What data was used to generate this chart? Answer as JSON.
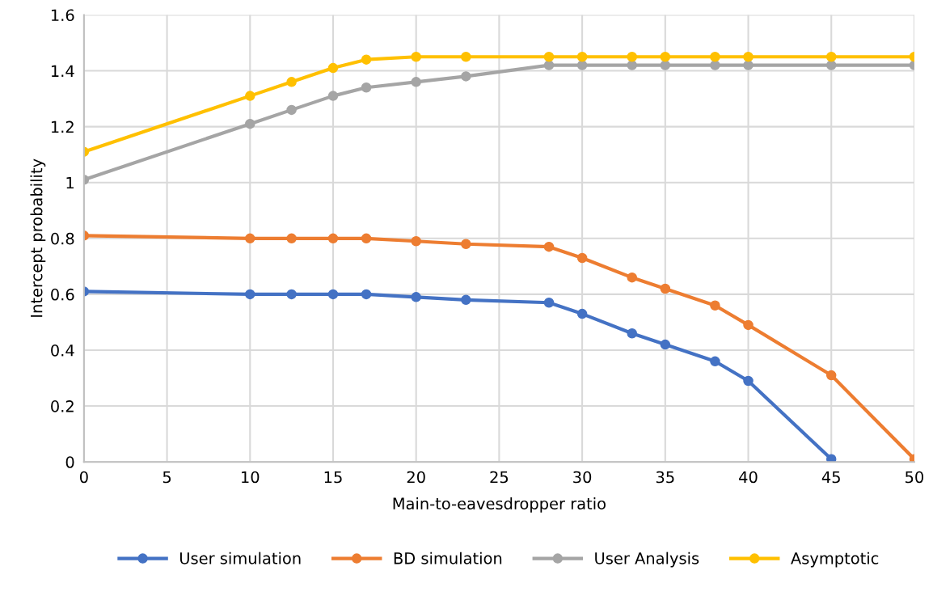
{
  "chart_data": {
    "type": "line",
    "xlabel": "Main-to-eavesdropper ratio",
    "ylabel": "Intercept probability",
    "xlim": [
      0,
      50
    ],
    "xticks": [
      0,
      5,
      10,
      15,
      20,
      25,
      30,
      35,
      40,
      45,
      50
    ],
    "ylim": [
      0,
      1.6
    ],
    "yticks": [
      0,
      0.2,
      0.4,
      0.6,
      0.8,
      1,
      1.2,
      1.4,
      1.6
    ],
    "grid": true,
    "legend": "bottom",
    "marker": "circle",
    "line_style": "solid",
    "series": [
      {
        "name": "User simulation",
        "color": "#4472c4",
        "x": [
          0,
          10,
          12.5,
          15,
          17,
          20,
          23,
          28,
          30,
          33,
          35,
          38,
          40,
          45
        ],
        "values": [
          0.61,
          0.6,
          0.6,
          0.6,
          0.6,
          0.59,
          0.58,
          0.57,
          0.53,
          0.46,
          0.42,
          0.36,
          0.29,
          0.01
        ]
      },
      {
        "name": "BD simulation",
        "color": "#ed7d31",
        "x": [
          0,
          10,
          12.5,
          15,
          17,
          20,
          23,
          28,
          30,
          33,
          35,
          38,
          40,
          45,
          50
        ],
        "values": [
          0.81,
          0.8,
          0.8,
          0.8,
          0.8,
          0.79,
          0.78,
          0.77,
          0.73,
          0.66,
          0.62,
          0.56,
          0.49,
          0.31,
          0.01
        ]
      },
      {
        "name": "User Analysis",
        "color": "#a5a5a5",
        "x": [
          0,
          10,
          12.5,
          15,
          17,
          20,
          23,
          28,
          30,
          33,
          35,
          38,
          40,
          45,
          50
        ],
        "values": [
          1.01,
          1.21,
          1.26,
          1.31,
          1.34,
          1.36,
          1.38,
          1.42,
          1.42,
          1.42,
          1.42,
          1.42,
          1.42,
          1.42,
          1.42
        ]
      },
      {
        "name": "Asymptotic",
        "color": "#ffc000",
        "x": [
          0,
          10,
          12.5,
          15,
          17,
          20,
          23,
          28,
          30,
          33,
          35,
          38,
          40,
          45,
          50
        ],
        "values": [
          1.11,
          1.31,
          1.36,
          1.41,
          1.44,
          1.45,
          1.45,
          1.45,
          1.45,
          1.45,
          1.45,
          1.45,
          1.45,
          1.45,
          1.45
        ]
      }
    ]
  }
}
